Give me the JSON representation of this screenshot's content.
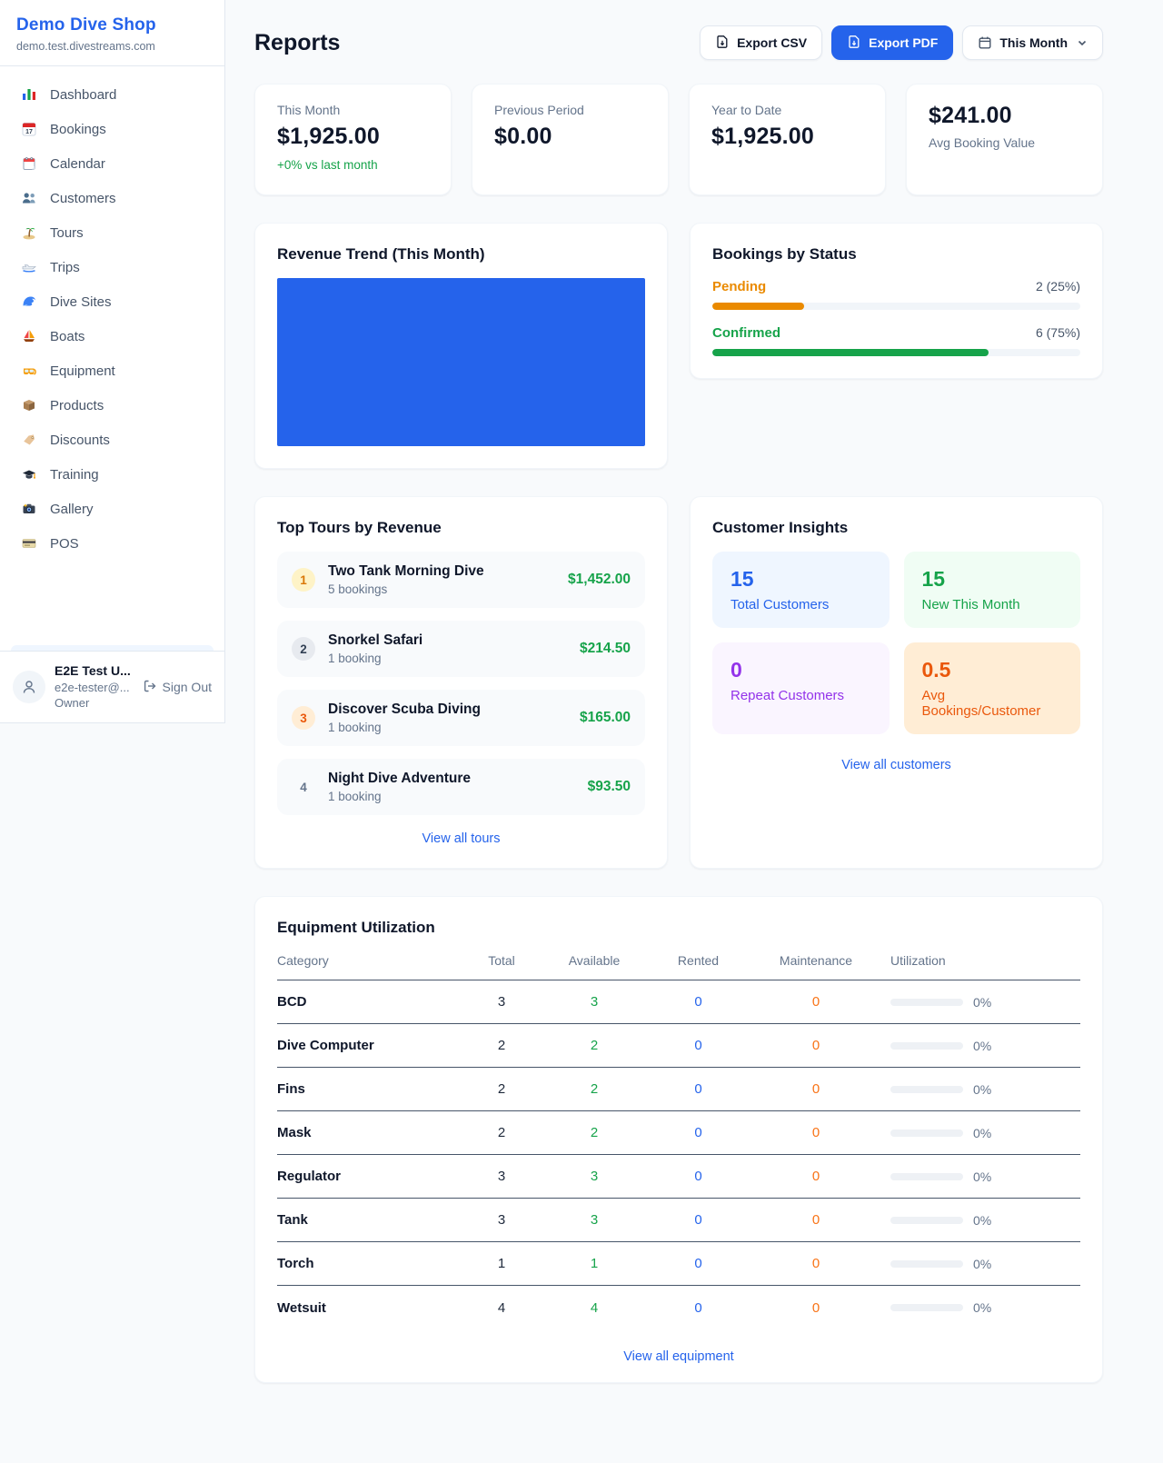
{
  "sidebar": {
    "brand": "Demo Dive Shop",
    "domain": "demo.test.divestreams.com",
    "items": [
      {
        "icon": "bar-chart-icon",
        "label": "Dashboard"
      },
      {
        "icon": "calendar-date-icon",
        "label": "Bookings"
      },
      {
        "icon": "spiral-calendar-icon",
        "label": "Calendar"
      },
      {
        "icon": "people-icon",
        "label": "Customers"
      },
      {
        "icon": "island-icon",
        "label": "Tours"
      },
      {
        "icon": "speedboat-icon",
        "label": "Trips"
      },
      {
        "icon": "wave-icon",
        "label": "Dive Sites"
      },
      {
        "icon": "sailboat-icon",
        "label": "Boats"
      },
      {
        "icon": "dive-mask-icon",
        "label": "Equipment"
      },
      {
        "icon": "package-icon",
        "label": "Products"
      },
      {
        "icon": "tag-icon",
        "label": "Discounts"
      },
      {
        "icon": "graduation-cap-icon",
        "label": "Training"
      },
      {
        "icon": "camera-icon",
        "label": "Gallery"
      },
      {
        "icon": "credit-card-icon",
        "label": "POS"
      }
    ],
    "user": {
      "name": "E2E Test U...",
      "email": "e2e-tester@...",
      "role": "Owner",
      "sign_out": "Sign Out"
    }
  },
  "header": {
    "title": "Reports",
    "export_csv_label": "Export CSV",
    "export_pdf_label": "Export PDF",
    "period_label": "This Month"
  },
  "stats": [
    {
      "label": "This Month",
      "value": "$1,925.00",
      "delta": "+0% vs last month"
    },
    {
      "label": "Previous Period",
      "value": "$0.00"
    },
    {
      "label": "Year to Date",
      "value": "$1,925.00"
    },
    {
      "label": "Avg Booking Value",
      "value": "$241.00"
    }
  ],
  "revenue_trend": {
    "title": "Revenue Trend (This Month)",
    "bar_color": "#2563eb"
  },
  "bookings_by_status": {
    "title": "Bookings by Status",
    "rows": [
      {
        "label": "Pending",
        "count_text": "2 (25%)",
        "pct": 25,
        "color": "#ea8a00"
      },
      {
        "label": "Confirmed",
        "count_text": "6 (75%)",
        "pct": 75,
        "color": "#16a34a"
      }
    ]
  },
  "top_tours": {
    "title": "Top Tours by Revenue",
    "items": [
      {
        "rank": "1",
        "name": "Two Tank Morning Dive",
        "bookings": "5 bookings",
        "revenue": "$1,452.00"
      },
      {
        "rank": "2",
        "name": "Snorkel Safari",
        "bookings": "1 booking",
        "revenue": "$214.50"
      },
      {
        "rank": "3",
        "name": "Discover Scuba Diving",
        "bookings": "1 booking",
        "revenue": "$165.00"
      },
      {
        "rank": "4",
        "name": "Night Dive Adventure",
        "bookings": "1 booking",
        "revenue": "$93.50"
      }
    ],
    "view_all": "View all tours"
  },
  "customer_insights": {
    "title": "Customer Insights",
    "tiles": [
      {
        "value": "15",
        "label": "Total Customers",
        "color": "#2563eb",
        "bg": "#eff6ff"
      },
      {
        "value": "15",
        "label": "New This Month",
        "color": "#16a34a",
        "bg": "#f0fdf4"
      },
      {
        "value": "0",
        "label": "Repeat Customers",
        "color": "#9333ea",
        "bg": "#faf5ff"
      },
      {
        "value": "0.5",
        "label": "Avg Bookings/Customer",
        "color": "#ea580c",
        "bg": "#ffedd5"
      }
    ],
    "view_all": "View all customers"
  },
  "equipment": {
    "title": "Equipment Utilization",
    "columns": [
      "Category",
      "Total",
      "Available",
      "Rented",
      "Maintenance",
      "Utilization"
    ],
    "rows": [
      {
        "category": "BCD",
        "total": "3",
        "available": "3",
        "rented": "0",
        "maintenance": "0",
        "utilization": "0%",
        "utilization_pct": 0
      },
      {
        "category": "Dive Computer",
        "total": "2",
        "available": "2",
        "rented": "0",
        "maintenance": "0",
        "utilization": "0%",
        "utilization_pct": 0
      },
      {
        "category": "Fins",
        "total": "2",
        "available": "2",
        "rented": "0",
        "maintenance": "0",
        "utilization": "0%",
        "utilization_pct": 0
      },
      {
        "category": "Mask",
        "total": "2",
        "available": "2",
        "rented": "0",
        "maintenance": "0",
        "utilization": "0%",
        "utilization_pct": 0
      },
      {
        "category": "Regulator",
        "total": "3",
        "available": "3",
        "rented": "0",
        "maintenance": "0",
        "utilization": "0%",
        "utilization_pct": 0
      },
      {
        "category": "Tank",
        "total": "3",
        "available": "3",
        "rented": "0",
        "maintenance": "0",
        "utilization": "0%",
        "utilization_pct": 0
      },
      {
        "category": "Torch",
        "total": "1",
        "available": "1",
        "rented": "0",
        "maintenance": "0",
        "utilization": "0%",
        "utilization_pct": 0
      },
      {
        "category": "Wetsuit",
        "total": "4",
        "available": "4",
        "rented": "0",
        "maintenance": "0",
        "utilization": "0%",
        "utilization_pct": 0
      }
    ],
    "view_all": "View all equipment"
  }
}
